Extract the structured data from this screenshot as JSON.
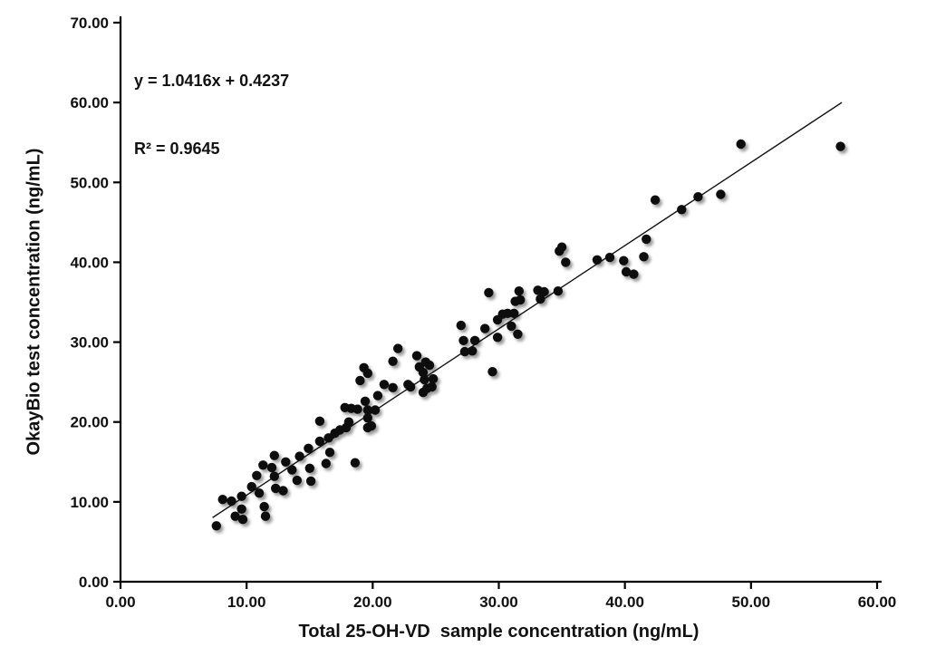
{
  "chart_data": {
    "type": "scatter",
    "title": "",
    "xlabel": "Total 25-OH-VD  sample concentration (ng/mL)",
    "ylabel": "OkayBio test concentration (ng/mL)",
    "xlim": [
      0,
      60
    ],
    "ylim": [
      0,
      70
    ],
    "grid": false,
    "legend_position": "none",
    "annotation": {
      "equation": "y = 1.0416x + 0.4237",
      "r_squared": "R² = 0.9645"
    },
    "x_ticks": [
      {
        "value": 0,
        "label": "0.00"
      },
      {
        "value": 10,
        "label": "10.00"
      },
      {
        "value": 20,
        "label": "20.00"
      },
      {
        "value": 30,
        "label": "30.00"
      },
      {
        "value": 40,
        "label": "40.00"
      },
      {
        "value": 50,
        "label": "50.00"
      },
      {
        "value": 60,
        "label": "60.00"
      }
    ],
    "y_ticks": [
      {
        "value": 0,
        "label": "0.00"
      },
      {
        "value": 10,
        "label": "10.00"
      },
      {
        "value": 20,
        "label": "20.00"
      },
      {
        "value": 30,
        "label": "30.00"
      },
      {
        "value": 40,
        "label": "40.00"
      },
      {
        "value": 50,
        "label": "50.00"
      },
      {
        "value": 60,
        "label": "60.00"
      },
      {
        "value": 70,
        "label": "70.00"
      }
    ],
    "trendline": {
      "slope": 1.0416,
      "intercept": 0.4237,
      "x_start": 7.3,
      "x_end": 57.2,
      "color": "#111111"
    },
    "marker": {
      "shape": "circle",
      "color": "#0d0d0d",
      "radius_px": 5.2,
      "shadow": true
    },
    "axis_color": "#000000",
    "points": [
      [
        7.6,
        7.0
      ],
      [
        8.1,
        10.3
      ],
      [
        8.8,
        10.1
      ],
      [
        9.1,
        8.2
      ],
      [
        9.6,
        9.1
      ],
      [
        9.7,
        7.8
      ],
      [
        9.6,
        10.7
      ],
      [
        10.4,
        11.9
      ],
      [
        11.0,
        11.1
      ],
      [
        11.4,
        9.4
      ],
      [
        11.5,
        8.2
      ],
      [
        10.8,
        13.3
      ],
      [
        11.3,
        14.6
      ],
      [
        12.0,
        14.3
      ],
      [
        12.2,
        13.2
      ],
      [
        12.3,
        11.7
      ],
      [
        12.9,
        11.4
      ],
      [
        12.2,
        15.8
      ],
      [
        13.1,
        15.0
      ],
      [
        13.6,
        14.0
      ],
      [
        14.0,
        12.7
      ],
      [
        15.0,
        14.2
      ],
      [
        15.1,
        12.6
      ],
      [
        14.2,
        15.7
      ],
      [
        14.9,
        16.7
      ],
      [
        15.8,
        20.1
      ],
      [
        15.8,
        17.6
      ],
      [
        16.3,
        14.8
      ],
      [
        16.5,
        18.0
      ],
      [
        16.6,
        16.2
      ],
      [
        17.0,
        18.6
      ],
      [
        17.4,
        19.0
      ],
      [
        17.8,
        21.8
      ],
      [
        17.9,
        19.3
      ],
      [
        18.1,
        20.0
      ],
      [
        18.3,
        21.7
      ],
      [
        18.6,
        14.9
      ],
      [
        18.8,
        21.6
      ],
      [
        19.0,
        25.2
      ],
      [
        19.3,
        26.8
      ],
      [
        19.4,
        22.6
      ],
      [
        19.6,
        19.3
      ],
      [
        19.6,
        26.1
      ],
      [
        19.6,
        21.5
      ],
      [
        19.6,
        20.5
      ],
      [
        19.9,
        19.5
      ],
      [
        20.2,
        21.5
      ],
      [
        20.4,
        23.3
      ],
      [
        20.9,
        24.7
      ],
      [
        21.6,
        24.3
      ],
      [
        21.6,
        27.6
      ],
      [
        22.0,
        29.2
      ],
      [
        22.8,
        24.7
      ],
      [
        23.0,
        24.4
      ],
      [
        23.5,
        28.3
      ],
      [
        23.7,
        26.9
      ],
      [
        24.0,
        26.2
      ],
      [
        24.2,
        27.5
      ],
      [
        24.5,
        27.1
      ],
      [
        24.0,
        23.7
      ],
      [
        24.3,
        24.2
      ],
      [
        24.7,
        24.4
      ],
      [
        24.1,
        25.3
      ],
      [
        24.8,
        25.4
      ],
      [
        27.0,
        32.1
      ],
      [
        27.2,
        30.2
      ],
      [
        27.3,
        28.8
      ],
      [
        27.9,
        28.9
      ],
      [
        28.1,
        30.2
      ],
      [
        28.9,
        31.7
      ],
      [
        29.2,
        36.2
      ],
      [
        29.5,
        26.3
      ],
      [
        29.9,
        32.8
      ],
      [
        29.9,
        30.6
      ],
      [
        30.3,
        33.5
      ],
      [
        30.7,
        33.6
      ],
      [
        31.2,
        33.6
      ],
      [
        31.0,
        32.0
      ],
      [
        31.3,
        35.1
      ],
      [
        31.7,
        35.3
      ],
      [
        31.5,
        31.0
      ],
      [
        31.6,
        36.4
      ],
      [
        33.1,
        36.5
      ],
      [
        33.3,
        35.4
      ],
      [
        33.6,
        36.3
      ],
      [
        34.7,
        36.4
      ],
      [
        34.8,
        41.4
      ],
      [
        35.0,
        41.9
      ],
      [
        35.3,
        40.0
      ],
      [
        37.8,
        40.3
      ],
      [
        38.8,
        40.6
      ],
      [
        39.9,
        40.2
      ],
      [
        40.1,
        38.8
      ],
      [
        40.7,
        38.5
      ],
      [
        41.5,
        40.7
      ],
      [
        41.7,
        42.9
      ],
      [
        42.4,
        47.8
      ],
      [
        44.5,
        46.6
      ],
      [
        45.8,
        48.2
      ],
      [
        47.6,
        48.5
      ],
      [
        49.2,
        54.8
      ],
      [
        57.1,
        54.5
      ]
    ]
  }
}
